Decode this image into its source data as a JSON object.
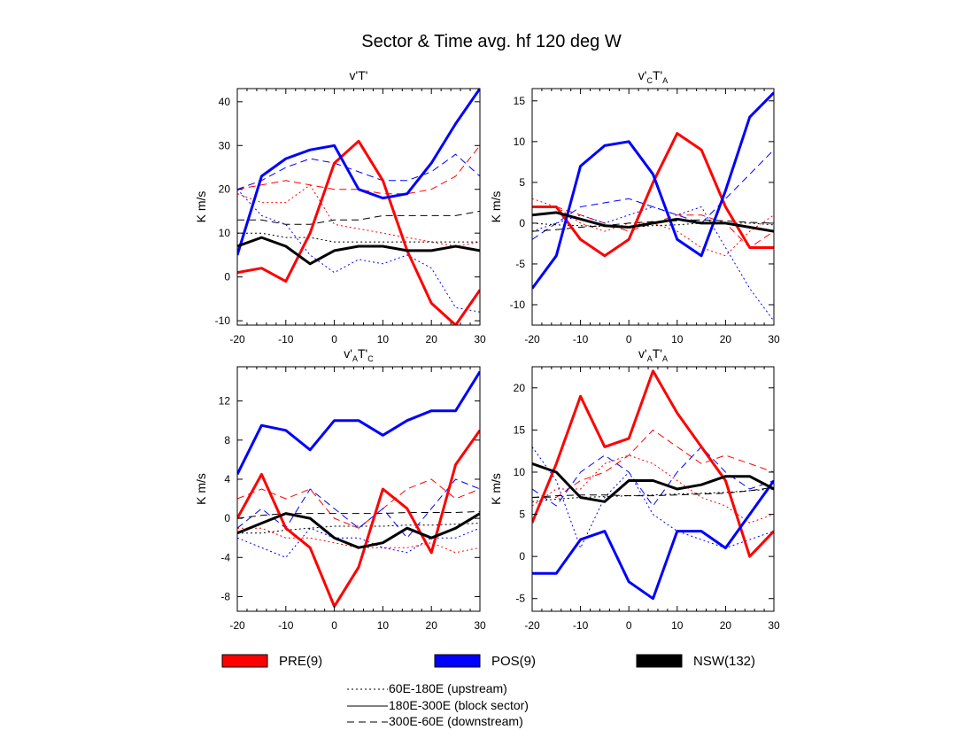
{
  "figure": {
    "title": "Sector & Time avg. hf 120 deg W",
    "ylabel": "K m/s",
    "xticks": [
      -20,
      -10,
      0,
      10,
      20,
      30
    ],
    "colors": {
      "PRE": "#ff0000",
      "POS": "#0000ff",
      "NSW": "#000000"
    }
  },
  "legend": {
    "groups": [
      {
        "key": "PRE",
        "label": "PRE(9)",
        "color": "#ff0000"
      },
      {
        "key": "POS",
        "label": "POS(9)",
        "color": "#0000ff"
      },
      {
        "key": "NSW",
        "label": "NSW(132)",
        "color": "#000000"
      }
    ],
    "sectors": [
      {
        "label": "60E-180E (upstream)",
        "dash": "dotted"
      },
      {
        "label": "180E-300E (block sector)",
        "dash": "solid"
      },
      {
        "label": "300E-60E (downstream)",
        "dash": "dashed"
      }
    ]
  },
  "panel_titles": [
    {
      "base": "v'T'",
      "sub": []
    },
    {
      "base": "v'",
      "sub": [
        "C",
        "T'",
        "A"
      ]
    },
    {
      "base": "v'",
      "sub": [
        "A",
        "T'",
        "C"
      ]
    },
    {
      "base": "v'",
      "sub": [
        "A",
        "T'",
        "A"
      ]
    }
  ],
  "chart_data": [
    {
      "type": "line",
      "title": "v'T'",
      "xlabel": "",
      "ylabel": "K m/s",
      "xlim": [
        -20,
        30
      ],
      "ylim": [
        -11,
        43
      ],
      "yticks": [
        -10,
        0,
        10,
        20,
        30,
        40
      ],
      "x": [
        -20,
        -15,
        -10,
        -5,
        0,
        5,
        10,
        15,
        20,
        25,
        30
      ],
      "series": [
        {
          "group": "PRE",
          "sector": "block",
          "values": [
            1,
            2,
            -1,
            10,
            26,
            31,
            22,
            6,
            -6,
            -11,
            -3
          ]
        },
        {
          "group": "POS",
          "sector": "block",
          "values": [
            5,
            23,
            27,
            29,
            30,
            20,
            18,
            19,
            26,
            35,
            43
          ]
        },
        {
          "group": "NSW",
          "sector": "block",
          "values": [
            7,
            9,
            7,
            3,
            6,
            7,
            7,
            6,
            6,
            7,
            6
          ]
        },
        {
          "group": "PRE",
          "sector": "upstream",
          "values": [
            19,
            17,
            17,
            21,
            12,
            11,
            10,
            9,
            8,
            7,
            8
          ]
        },
        {
          "group": "PRE",
          "sector": "downstream",
          "values": [
            20,
            21,
            22,
            21,
            20,
            20,
            19,
            19,
            20,
            23,
            30
          ]
        },
        {
          "group": "POS",
          "sector": "upstream",
          "values": [
            20,
            14,
            12,
            5,
            1,
            4,
            3,
            5,
            2,
            -7,
            -8
          ]
        },
        {
          "group": "POS",
          "sector": "downstream",
          "values": [
            20,
            22,
            25,
            27,
            26,
            24,
            22,
            22,
            24,
            28,
            23
          ]
        },
        {
          "group": "NSW",
          "sector": "upstream",
          "values": [
            10,
            10,
            9,
            9,
            8,
            8,
            8,
            8,
            8,
            8,
            8
          ]
        },
        {
          "group": "NSW",
          "sector": "downstream",
          "values": [
            13,
            13,
            12,
            12,
            13,
            13,
            14,
            14,
            14,
            14,
            15
          ]
        }
      ]
    },
    {
      "type": "line",
      "title": "v'CT'A",
      "xlabel": "",
      "ylabel": "K m/s",
      "xlim": [
        -20,
        30
      ],
      "ylim": [
        -12.5,
        16.5
      ],
      "yticks": [
        -10,
        -5,
        0,
        5,
        10,
        15
      ],
      "x": [
        -20,
        -15,
        -10,
        -5,
        0,
        5,
        10,
        15,
        20,
        25,
        30
      ],
      "series": [
        {
          "group": "PRE",
          "sector": "block",
          "values": [
            2,
            2,
            -2,
            -4,
            -2,
            5,
            11,
            9,
            2,
            -3,
            -3
          ]
        },
        {
          "group": "POS",
          "sector": "block",
          "values": [
            -8,
            -4,
            7,
            9.5,
            10,
            6,
            -2,
            -4,
            4,
            13,
            16
          ]
        },
        {
          "group": "NSW",
          "sector": "block",
          "values": [
            1,
            1.3,
            0.5,
            -0.3,
            -0.5,
            0,
            0.5,
            0,
            0,
            -0.5,
            -1
          ]
        },
        {
          "group": "PRE",
          "sector": "upstream",
          "values": [
            3,
            2,
            0,
            -1,
            0,
            0,
            -1,
            -3,
            -4,
            -1,
            1
          ]
        },
        {
          "group": "PRE",
          "sector": "downstream",
          "values": [
            2,
            2,
            1,
            0,
            -1,
            0,
            1,
            1,
            0,
            -3,
            -1
          ]
        },
        {
          "group": "POS",
          "sector": "upstream",
          "values": [
            -1,
            0,
            1,
            0,
            1,
            2,
            1,
            2,
            -3,
            -8,
            -12
          ]
        },
        {
          "group": "POS",
          "sector": "downstream",
          "values": [
            -2,
            0,
            2,
            2.5,
            3,
            2,
            1,
            0,
            3,
            6,
            9
          ]
        },
        {
          "group": "NSW",
          "sector": "upstream",
          "values": [
            0,
            -0.2,
            -0.3,
            -0.4,
            -0.5,
            -0.3,
            -0.2,
            0,
            0,
            0,
            -0.2
          ]
        },
        {
          "group": "NSW",
          "sector": "downstream",
          "values": [
            -1,
            -0.8,
            -0.5,
            -0.3,
            0,
            0.2,
            0.3,
            0.4,
            0.3,
            0.1,
            0
          ]
        }
      ]
    },
    {
      "type": "line",
      "title": "v'AT'C",
      "xlabel": "",
      "ylabel": "K m/s",
      "xlim": [
        -20,
        30
      ],
      "ylim": [
        -9.5,
        15.5
      ],
      "yticks": [
        -8,
        -4,
        0,
        4,
        8,
        12
      ],
      "x": [
        -20,
        -15,
        -10,
        -5,
        0,
        5,
        10,
        15,
        20,
        25,
        30
      ],
      "series": [
        {
          "group": "PRE",
          "sector": "block",
          "values": [
            0,
            4.5,
            -1,
            -3,
            -9,
            -5,
            3,
            1,
            -3.5,
            5.5,
            9
          ]
        },
        {
          "group": "POS",
          "sector": "block",
          "values": [
            4.5,
            9.5,
            9,
            7,
            10,
            10,
            8.5,
            10,
            11,
            11,
            15
          ]
        },
        {
          "group": "NSW",
          "sector": "block",
          "values": [
            -1.5,
            -0.5,
            0.5,
            0,
            -2,
            -3,
            -2.5,
            -1,
            -2,
            -1,
            0.5
          ]
        },
        {
          "group": "PRE",
          "sector": "upstream",
          "values": [
            -1,
            -1,
            -2,
            -2,
            -2.5,
            -3,
            -3,
            -3,
            -2.5,
            -3.5,
            -3
          ]
        },
        {
          "group": "PRE",
          "sector": "downstream",
          "values": [
            2,
            3,
            2,
            3,
            0,
            -1,
            1,
            3,
            4,
            2,
            3
          ]
        },
        {
          "group": "POS",
          "sector": "upstream",
          "values": [
            -2,
            -3,
            -4,
            -1,
            -2,
            -2,
            -3,
            -3.5,
            -2,
            -2,
            -1
          ]
        },
        {
          "group": "POS",
          "sector": "downstream",
          "values": [
            -1,
            1,
            -1,
            3,
            1,
            -1,
            1,
            -2,
            1,
            4,
            3
          ]
        },
        {
          "group": "NSW",
          "sector": "upstream",
          "values": [
            -1.5,
            -1.5,
            -1.2,
            -1,
            -0.8,
            -0.8,
            -0.8,
            -0.7,
            -0.7,
            -0.6,
            -0.5
          ]
        },
        {
          "group": "NSW",
          "sector": "downstream",
          "values": [
            0,
            0.3,
            0.5,
            0.5,
            0.5,
            0.5,
            0.5,
            0.6,
            0.6,
            0.6,
            0.7
          ]
        }
      ]
    },
    {
      "type": "line",
      "title": "v'AT'A",
      "xlabel": "",
      "ylabel": "K m/s",
      "xlim": [
        -20,
        30
      ],
      "ylim": [
        -6.5,
        22.5
      ],
      "yticks": [
        -5,
        0,
        5,
        10,
        15,
        20
      ],
      "x": [
        -20,
        -15,
        -10,
        -5,
        0,
        5,
        10,
        15,
        20,
        25,
        30
      ],
      "series": [
        {
          "group": "PRE",
          "sector": "block",
          "values": [
            4,
            11,
            19,
            13,
            14,
            22,
            17,
            13,
            9,
            0,
            3
          ]
        },
        {
          "group": "POS",
          "sector": "block",
          "values": [
            -2,
            -2,
            2,
            3,
            -3,
            -5,
            3,
            3,
            1,
            5,
            9
          ]
        },
        {
          "group": "NSW",
          "sector": "block",
          "values": [
            11,
            10,
            7,
            6.5,
            9,
            9,
            8,
            8.5,
            9.5,
            9.5,
            8
          ]
        },
        {
          "group": "PRE",
          "sector": "upstream",
          "values": [
            6,
            8,
            8,
            11,
            12,
            11,
            9,
            7,
            6,
            4,
            5
          ]
        },
        {
          "group": "PRE",
          "sector": "downstream",
          "values": [
            7,
            7,
            9,
            10,
            12,
            15,
            13,
            11,
            12,
            11,
            10
          ]
        },
        {
          "group": "POS",
          "sector": "upstream",
          "values": [
            13,
            9,
            1,
            7,
            10,
            5,
            3,
            2,
            1,
            2,
            3
          ]
        },
        {
          "group": "POS",
          "sector": "downstream",
          "values": [
            8,
            6,
            10,
            12,
            10,
            6,
            10,
            13,
            10,
            8,
            9
          ]
        },
        {
          "group": "NSW",
          "sector": "upstream",
          "values": [
            6.5,
            6.8,
            7,
            7.1,
            7.2,
            7.3,
            7.4,
            7.5,
            7.6,
            7.8,
            8
          ]
        },
        {
          "group": "NSW",
          "sector": "downstream",
          "values": [
            7,
            7.2,
            7.3,
            7.3,
            7.2,
            7.2,
            7.3,
            7.4,
            7.5,
            7.8,
            8.2
          ]
        }
      ]
    }
  ]
}
